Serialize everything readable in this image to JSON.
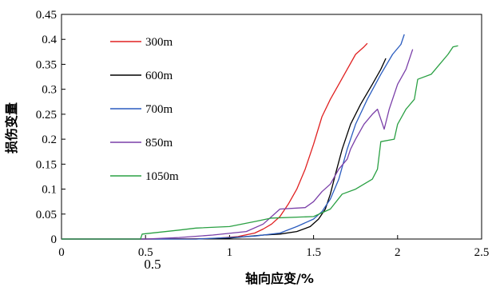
{
  "chart_data": {
    "type": "line",
    "title": "",
    "xlabel": "轴向应变/%",
    "ylabel": "损伤变量",
    "xlim": [
      0,
      2.5
    ],
    "ylim": [
      0,
      0.45
    ],
    "x_ticks": [
      "0",
      "0.5",
      "1",
      "1.5",
      "2",
      "2.5"
    ],
    "y_ticks": [
      "0",
      "0.05",
      "0.1",
      "0.15",
      "0.2",
      "0.25",
      "0.3",
      "0.35",
      "0.4",
      "0.45"
    ],
    "annotation": "0.5",
    "grid": false,
    "legend_position": "upper-left",
    "series": [
      {
        "name": "300m",
        "color": "#e02020",
        "points": [
          [
            0,
            0
          ],
          [
            0.5,
            0
          ],
          [
            0.9,
            0.001
          ],
          [
            1.05,
            0.005
          ],
          [
            1.15,
            0.012
          ],
          [
            1.2,
            0.02
          ],
          [
            1.25,
            0.03
          ],
          [
            1.3,
            0.045
          ],
          [
            1.35,
            0.07
          ],
          [
            1.4,
            0.1
          ],
          [
            1.45,
            0.14
          ],
          [
            1.5,
            0.19
          ],
          [
            1.55,
            0.245
          ],
          [
            1.6,
            0.28
          ],
          [
            1.65,
            0.31
          ],
          [
            1.7,
            0.34
          ],
          [
            1.75,
            0.37
          ],
          [
            1.8,
            0.385
          ],
          [
            1.82,
            0.392
          ]
        ]
      },
      {
        "name": "600m",
        "color": "#000000",
        "points": [
          [
            0,
            0
          ],
          [
            0.8,
            0
          ],
          [
            1.0,
            0.002
          ],
          [
            1.1,
            0.005
          ],
          [
            1.2,
            0.008
          ],
          [
            1.3,
            0.01
          ],
          [
            1.4,
            0.015
          ],
          [
            1.48,
            0.025
          ],
          [
            1.53,
            0.04
          ],
          [
            1.57,
            0.06
          ],
          [
            1.6,
            0.09
          ],
          [
            1.63,
            0.13
          ],
          [
            1.67,
            0.18
          ],
          [
            1.72,
            0.23
          ],
          [
            1.78,
            0.27
          ],
          [
            1.85,
            0.31
          ],
          [
            1.9,
            0.34
          ],
          [
            1.93,
            0.362
          ]
        ]
      },
      {
        "name": "700m",
        "color": "#2a5cbf",
        "points": [
          [
            0,
            0
          ],
          [
            0.8,
            0
          ],
          [
            1.0,
            0.003
          ],
          [
            1.15,
            0.006
          ],
          [
            1.3,
            0.012
          ],
          [
            1.4,
            0.025
          ],
          [
            1.5,
            0.04
          ],
          [
            1.55,
            0.055
          ],
          [
            1.6,
            0.08
          ],
          [
            1.65,
            0.12
          ],
          [
            1.7,
            0.18
          ],
          [
            1.75,
            0.23
          ],
          [
            1.82,
            0.28
          ],
          [
            1.9,
            0.33
          ],
          [
            1.97,
            0.37
          ],
          [
            2.02,
            0.39
          ],
          [
            2.04,
            0.41
          ]
        ]
      },
      {
        "name": "850m",
        "color": "#7a3fa8",
        "points": [
          [
            0,
            0
          ],
          [
            0.5,
            0
          ],
          [
            0.7,
            0.003
          ],
          [
            0.9,
            0.008
          ],
          [
            1.1,
            0.015
          ],
          [
            1.2,
            0.03
          ],
          [
            1.3,
            0.06
          ],
          [
            1.45,
            0.063
          ],
          [
            1.5,
            0.075
          ],
          [
            1.55,
            0.095
          ],
          [
            1.6,
            0.11
          ],
          [
            1.65,
            0.14
          ],
          [
            1.7,
            0.16
          ],
          [
            1.72,
            0.18
          ],
          [
            1.75,
            0.2
          ],
          [
            1.8,
            0.23
          ],
          [
            1.85,
            0.25
          ],
          [
            1.88,
            0.26
          ],
          [
            1.92,
            0.22
          ],
          [
            1.95,
            0.26
          ],
          [
            2.0,
            0.31
          ],
          [
            2.05,
            0.34
          ],
          [
            2.07,
            0.36
          ],
          [
            2.09,
            0.38
          ]
        ]
      },
      {
        "name": "1050m",
        "color": "#2aa043",
        "points": [
          [
            0,
            0
          ],
          [
            0.47,
            0
          ],
          [
            0.48,
            0.01
          ],
          [
            0.7,
            0.018
          ],
          [
            0.8,
            0.022
          ],
          [
            1.0,
            0.025
          ],
          [
            1.15,
            0.035
          ],
          [
            1.25,
            0.042
          ],
          [
            1.5,
            0.045
          ],
          [
            1.6,
            0.06
          ],
          [
            1.67,
            0.09
          ],
          [
            1.75,
            0.1
          ],
          [
            1.8,
            0.11
          ],
          [
            1.85,
            0.12
          ],
          [
            1.88,
            0.14
          ],
          [
            1.9,
            0.195
          ],
          [
            1.98,
            0.2
          ],
          [
            2.0,
            0.23
          ],
          [
            2.05,
            0.26
          ],
          [
            2.1,
            0.28
          ],
          [
            2.12,
            0.32
          ],
          [
            2.2,
            0.33
          ],
          [
            2.25,
            0.35
          ],
          [
            2.3,
            0.37
          ],
          [
            2.33,
            0.385
          ],
          [
            2.36,
            0.387
          ]
        ]
      }
    ]
  }
}
